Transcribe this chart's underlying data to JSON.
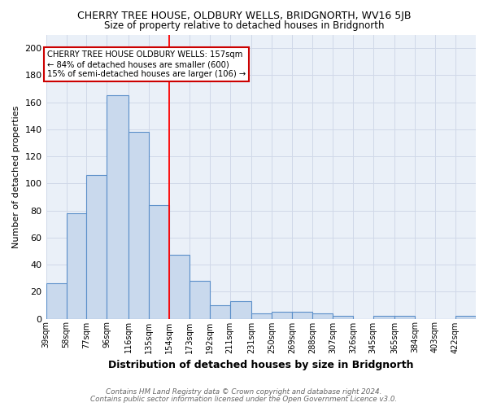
{
  "title": "CHERRY TREE HOUSE, OLDBURY WELLS, BRIDGNORTH, WV16 5JB",
  "subtitle": "Size of property relative to detached houses in Bridgnorth",
  "xlabel": "Distribution of detached houses by size in Bridgnorth",
  "ylabel": "Number of detached properties",
  "bin_labels": [
    "39sqm",
    "58sqm",
    "77sqm",
    "96sqm",
    "116sqm",
    "135sqm",
    "154sqm",
    "173sqm",
    "192sqm",
    "211sqm",
    "231sqm",
    "250sqm",
    "269sqm",
    "288sqm",
    "307sqm",
    "326sqm",
    "345sqm",
    "365sqm",
    "384sqm",
    "403sqm",
    "422sqm"
  ],
  "bin_edges": [
    39,
    58,
    77,
    96,
    116,
    135,
    154,
    173,
    192,
    211,
    231,
    250,
    269,
    288,
    307,
    326,
    345,
    365,
    384,
    403,
    422,
    441
  ],
  "bar_heights": [
    26,
    78,
    106,
    165,
    138,
    84,
    47,
    28,
    10,
    13,
    4,
    5,
    5,
    4,
    2,
    0,
    2,
    2,
    0,
    0,
    2
  ],
  "bar_color": "#c9d9ed",
  "bar_edge_color": "#5b8fc9",
  "red_line_x": 154,
  "annotation_line1": "CHERRY TREE HOUSE OLDBURY WELLS: 157sqm",
  "annotation_line2": "← 84% of detached houses are smaller (600)",
  "annotation_line3": "15% of semi-detached houses are larger (106) →",
  "annotation_box_color": "#ffffff",
  "annotation_box_edge_color": "#cc0000",
  "ylim": [
    0,
    210
  ],
  "yticks": [
    0,
    20,
    40,
    60,
    80,
    100,
    120,
    140,
    160,
    180,
    200
  ],
  "grid_color": "#d0d8e8",
  "background_color": "#eaf0f8",
  "footer_line1": "Contains HM Land Registry data © Crown copyright and database right 2024.",
  "footer_line2": "Contains public sector information licensed under the Open Government Licence v3.0."
}
